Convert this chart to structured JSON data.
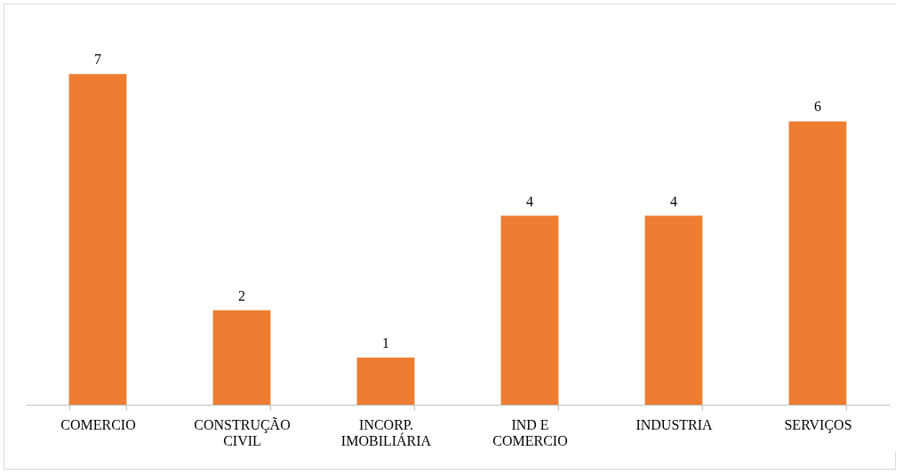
{
  "chart_data": {
    "type": "bar",
    "categories": [
      "COMERCIO",
      "CONSTRUÇÃO CIVIL",
      "INCORP. IMOBILIÁRIA",
      "IND E COMERCIO",
      "INDUSTRIA",
      "SERVIÇOS"
    ],
    "values": [
      7,
      2,
      1,
      4,
      4,
      6
    ],
    "color": "#ed7d31",
    "data_labels": true,
    "tick_labels": "x"
  }
}
